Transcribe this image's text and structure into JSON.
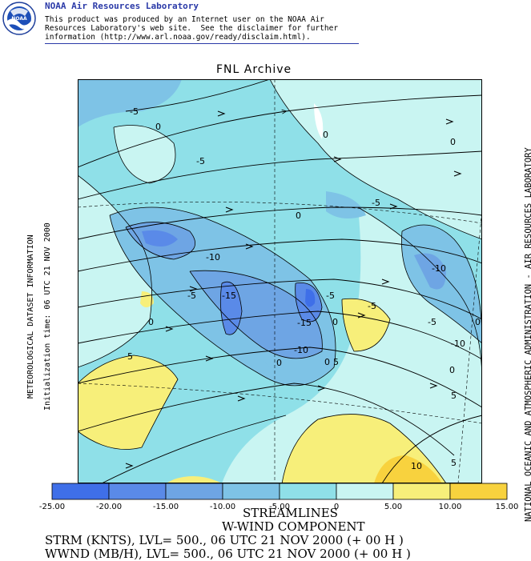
{
  "header": {
    "lab_title": "NOAA Air Resources Laboratory",
    "disclaimer_1": "This product was produced by an Internet user on the NOAA Air",
    "disclaimer_2": "Resources Laboratory's web site.  See the disclaimer for further",
    "disclaimer_3": "information (http://www.arl.noaa.gov/ready/disclaim.html).",
    "logo_text": "NOAA"
  },
  "map": {
    "title": "FNL Archive",
    "left_label_1": "METEOROLOGICAL DATASET INFORMATION",
    "left_label_2": "Initialization time: 06 UTC 21 NOV 2000",
    "right_label": "NATIONAL OCEANIC AND ATMOSPHERIC ADMINISTRATION - AIR RESOURCES LABORATORY",
    "contour_labels": [
      "-5",
      "0",
      "-5",
      "0",
      "0",
      "-5",
      "0",
      "-10",
      "-15",
      "-5",
      "-15",
      "0",
      "-10",
      "-5",
      "-10",
      "0",
      "-5",
      "0",
      "-10",
      "0",
      "5",
      "0",
      "5",
      "5",
      "10",
      "5",
      "-5",
      "0"
    ],
    "colors": {
      "c_m25": "#3f6fe8",
      "c_m20": "#5a8ae8",
      "c_m15": "#6ea5e4",
      "c_m10": "#7ec3e6",
      "c_m5": "#8fe0e8",
      "c_0": "#c9f5f2",
      "c_5": "#f7ef7a",
      "c_10": "#f8d23e",
      "c_15": "#f5b91c"
    }
  },
  "colorbar": {
    "ticks": [
      "-25.00",
      "-20.00",
      "-15.00",
      "-10.00",
      "-5.00",
      "0",
      "5.00",
      "10.00",
      "15.00"
    ]
  },
  "footer": {
    "line1": "STREAMLINES",
    "line2": "W-WIND COMPONENT",
    "line3": "STRM (KNTS),  LVL= 500., 06 UTC 21 NOV 2000 (+ 00 H )",
    "line4": "WWND (MB/H),  LVL= 500., 06 UTC 21 NOV 2000 (+ 00 H )"
  }
}
